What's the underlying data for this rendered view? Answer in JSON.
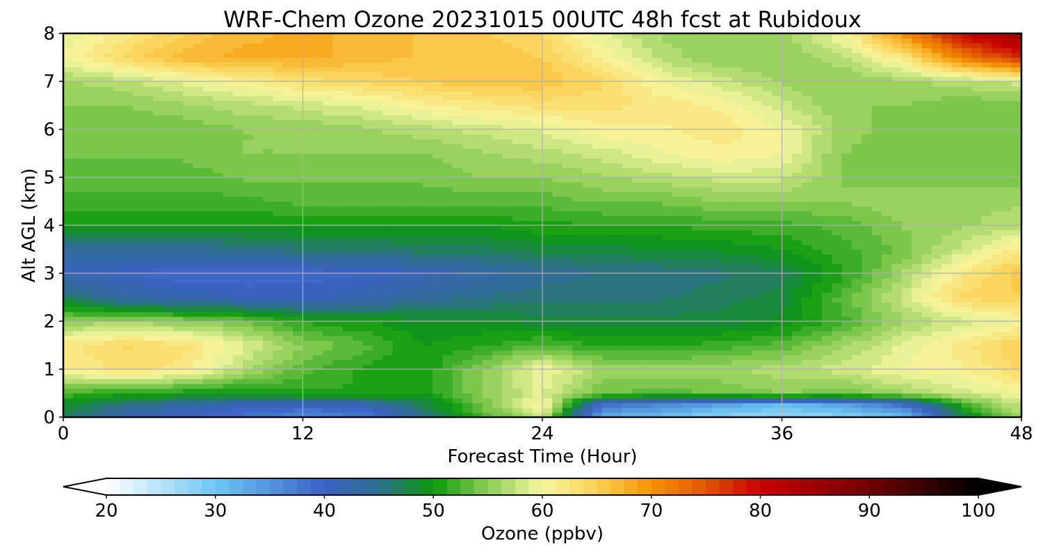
{
  "chart_data": {
    "type": "heatmap",
    "title": "WRF-Chem Ozone  20231015 00UTC 48h fcst at Rubidoux",
    "xlabel": "Forecast Time (Hour)",
    "ylabel": "Alt AGL (km)",
    "xlim": [
      0,
      48
    ],
    "ylim": [
      0,
      8
    ],
    "xticks": [
      0,
      12,
      24,
      36,
      48
    ],
    "yticks": [
      0,
      1,
      2,
      3,
      4,
      5,
      6,
      7,
      8
    ],
    "grid": true,
    "x_hours": [
      0,
      3,
      6,
      9,
      12,
      15,
      18,
      21,
      24,
      27,
      30,
      33,
      36,
      39,
      42,
      45,
      48
    ],
    "y_km": [
      0,
      0.25,
      0.5,
      1,
      1.5,
      2,
      2.5,
      3,
      3.5,
      4,
      4.5,
      5,
      5.5,
      6,
      6.5,
      7,
      7.5,
      8
    ],
    "ozone_ppbv": [
      [
        47,
        42,
        40,
        38,
        36,
        37,
        44,
        52,
        58,
        32,
        30,
        28,
        27,
        28,
        30,
        47,
        56
      ],
      [
        49,
        45,
        43,
        41,
        40,
        41,
        47,
        54,
        61,
        38,
        36,
        33,
        31,
        33,
        38,
        51,
        58
      ],
      [
        52,
        51,
        50,
        50,
        51,
        51,
        50,
        55,
        59,
        54,
        53,
        54,
        55,
        54,
        56,
        58,
        60
      ],
      [
        61,
        63,
        62,
        57,
        53,
        51,
        50,
        55,
        60,
        56,
        56,
        56,
        57,
        58,
        60,
        61,
        64
      ],
      [
        62,
        64,
        63,
        59,
        55,
        53,
        50,
        51,
        53,
        51,
        51,
        52,
        53,
        56,
        59,
        62,
        65
      ],
      [
        55,
        56,
        55,
        54,
        51,
        50,
        49,
        49,
        48,
        48,
        48,
        48,
        49,
        52,
        56,
        58,
        60
      ],
      [
        47,
        43,
        42,
        41,
        41,
        42,
        44,
        45,
        46,
        46,
        46,
        47,
        48,
        53,
        58,
        64,
        65
      ],
      [
        41,
        40,
        39,
        39,
        39,
        40,
        41,
        43,
        44,
        45,
        45,
        46,
        47,
        51,
        56,
        62,
        66
      ],
      [
        44,
        44,
        44,
        45,
        46,
        46,
        47,
        47,
        48,
        48,
        49,
        49,
        50,
        52,
        54,
        58,
        62
      ],
      [
        50,
        50,
        50,
        50,
        50,
        50,
        50,
        50,
        51,
        51,
        51,
        52,
        52,
        53,
        55,
        56,
        57
      ],
      [
        52,
        52,
        52,
        52,
        53,
        53,
        53,
        53,
        53,
        54,
        54,
        55,
        55,
        55,
        56,
        56,
        56
      ],
      [
        53,
        53,
        53,
        54,
        54,
        54,
        54,
        55,
        55,
        56,
        57,
        58,
        58,
        55,
        54,
        54,
        54
      ],
      [
        54,
        54,
        54,
        55,
        55,
        55,
        55,
        56,
        57,
        58,
        60,
        61,
        60,
        55,
        54,
        54,
        54
      ],
      [
        54,
        54,
        54,
        55,
        55,
        56,
        57,
        58,
        59,
        61,
        61,
        62,
        60,
        56,
        54,
        54,
        54
      ],
      [
        55,
        55,
        56,
        57,
        58,
        59,
        61,
        62,
        63,
        63,
        62,
        61,
        58,
        55,
        55,
        54,
        54
      ],
      [
        56,
        57,
        59,
        61,
        63,
        64,
        65,
        66,
        66,
        64,
        60,
        58,
        56,
        55,
        56,
        57,
        58
      ],
      [
        60,
        64,
        67,
        68,
        68,
        67,
        66,
        66,
        65,
        61,
        57,
        55,
        55,
        57,
        62,
        72,
        78
      ],
      [
        59,
        62,
        65,
        67,
        68,
        67,
        66,
        65,
        64,
        59,
        56,
        55,
        56,
        60,
        70,
        80,
        85
      ]
    ],
    "colorbar": {
      "label": "Ozone  (ppbv)",
      "min": 20,
      "max": 100,
      "ticks": [
        20,
        30,
        40,
        50,
        60,
        70,
        80,
        90,
        100
      ],
      "extend": "both",
      "stops": [
        {
          "v": 20,
          "c": "#ffffff"
        },
        {
          "v": 30,
          "c": "#6ec6f5"
        },
        {
          "v": 40,
          "c": "#3a62c4"
        },
        {
          "v": 45,
          "c": "#2e6e8f"
        },
        {
          "v": 50,
          "c": "#0a9a0a"
        },
        {
          "v": 55,
          "c": "#8ccd55"
        },
        {
          "v": 60,
          "c": "#f7f7a0"
        },
        {
          "v": 65,
          "c": "#fcd155"
        },
        {
          "v": 70,
          "c": "#f59300"
        },
        {
          "v": 75,
          "c": "#e05500"
        },
        {
          "v": 80,
          "c": "#c80000"
        },
        {
          "v": 90,
          "c": "#700000"
        },
        {
          "v": 100,
          "c": "#000000"
        }
      ]
    }
  }
}
